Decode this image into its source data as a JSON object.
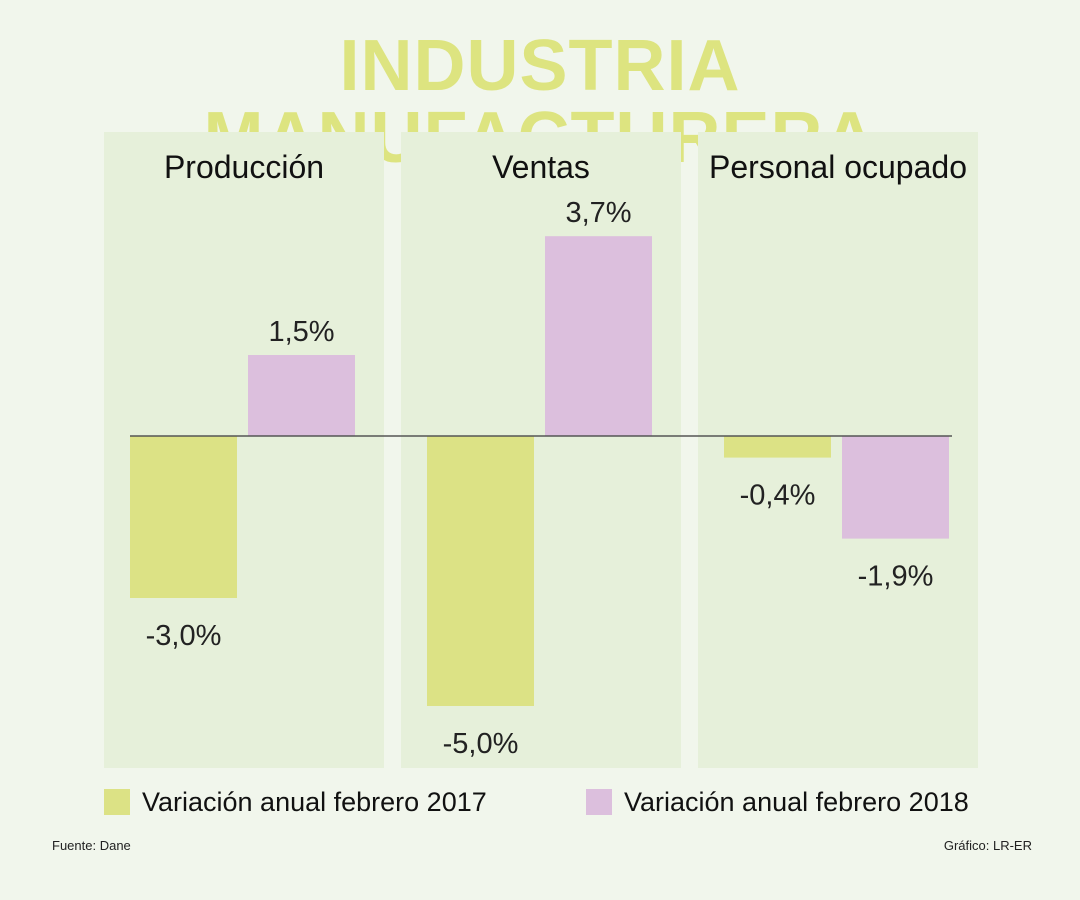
{
  "title": "INDUSTRIA MANUFACTURERA",
  "chart_data": {
    "type": "bar",
    "categories": [
      "Producción",
      "Ventas",
      "Personal ocupado"
    ],
    "series": [
      {
        "name": "Variación anual febrero 2017",
        "color": "#dce285",
        "values": [
          -3.0,
          -5.0,
          -0.4
        ],
        "labels": [
          "-3,0%",
          "-5,0%",
          "-0,4%"
        ]
      },
      {
        "name": "Variación anual febrero 2018",
        "color": "#dcbfdd",
        "values": [
          1.5,
          3.7,
          -1.9
        ],
        "labels": [
          "1,5%",
          "3,7%",
          "-1,9%"
        ]
      }
    ],
    "unit": "%",
    "ylim": [
      -6,
      6
    ]
  },
  "colors": {
    "background": "#f1f6ec",
    "panel": "#e6f0da",
    "title": "#dde480"
  },
  "footer": {
    "source": "Fuente: Dane",
    "credit": "Gráfico: LR-ER"
  }
}
